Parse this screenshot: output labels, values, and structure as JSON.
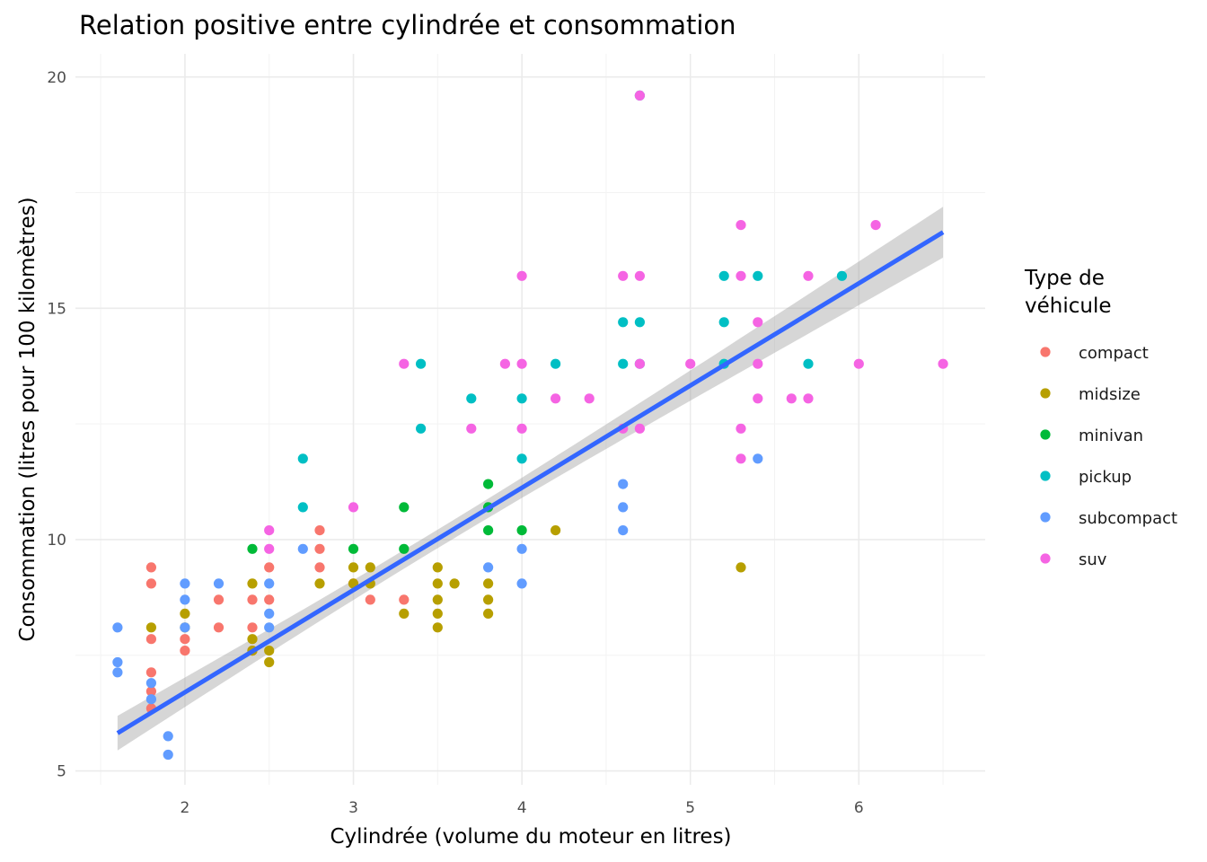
{
  "chart_data": {
    "type": "scatter",
    "title": "Relation positive entre cylindrée et consommation",
    "xlabel": "Cylindrée (volume du moteur en litres)",
    "ylabel": "Consommation (litres pour 100 kilomètres)",
    "xlim": [
      1.35,
      6.75
    ],
    "ylim": [
      4.7,
      20.5
    ],
    "x_ticks": [
      2,
      3,
      4,
      5,
      6
    ],
    "y_ticks": [
      5,
      10,
      15,
      20
    ],
    "grid": true,
    "legend": {
      "title": [
        "Type de",
        "véhicule"
      ],
      "placement": "right"
    },
    "trend": {
      "method": "linear",
      "intercept": 2.28,
      "slope": 2.21,
      "ci_halfwidth_at_ends": 0.55,
      "ci_halfwidth_at_mean": 0.2,
      "x_mean": 3.47,
      "x_range": [
        1.6,
        6.5
      ],
      "color": "#3366ff",
      "band_color": "#999999"
    },
    "series": [
      {
        "name": "compact",
        "color": "#f8766d",
        "points": [
          [
            1.8,
            9.4
          ],
          [
            1.8,
            9.05
          ],
          [
            1.8,
            7.85
          ],
          [
            1.8,
            7.13
          ],
          [
            1.8,
            6.72
          ],
          [
            1.8,
            6.35
          ],
          [
            2.0,
            7.85
          ],
          [
            2.0,
            7.6
          ],
          [
            2.2,
            8.7
          ],
          [
            2.2,
            8.1
          ],
          [
            2.4,
            8.7
          ],
          [
            2.4,
            8.1
          ],
          [
            2.4,
            7.6
          ],
          [
            2.5,
            9.4
          ],
          [
            2.5,
            8.7
          ],
          [
            2.8,
            10.2
          ],
          [
            2.8,
            9.8
          ],
          [
            2.8,
            9.4
          ],
          [
            3.0,
            9.05
          ],
          [
            3.1,
            8.7
          ],
          [
            3.3,
            8.7
          ]
        ]
      },
      {
        "name": "midsize",
        "color": "#b79f00",
        "points": [
          [
            1.8,
            8.1
          ],
          [
            2.0,
            8.4
          ],
          [
            2.0,
            8.1
          ],
          [
            2.4,
            9.05
          ],
          [
            2.4,
            7.85
          ],
          [
            2.4,
            7.6
          ],
          [
            2.5,
            7.6
          ],
          [
            2.5,
            7.35
          ],
          [
            2.8,
            9.05
          ],
          [
            3.0,
            9.4
          ],
          [
            3.0,
            9.05
          ],
          [
            3.1,
            9.4
          ],
          [
            3.1,
            9.05
          ],
          [
            3.3,
            8.4
          ],
          [
            3.5,
            9.4
          ],
          [
            3.5,
            9.05
          ],
          [
            3.5,
            8.7
          ],
          [
            3.5,
            8.4
          ],
          [
            3.5,
            8.1
          ],
          [
            3.6,
            9.05
          ],
          [
            3.8,
            9.05
          ],
          [
            3.8,
            8.7
          ],
          [
            3.8,
            8.4
          ],
          [
            4.2,
            10.2
          ],
          [
            5.3,
            9.4
          ]
        ]
      },
      {
        "name": "minivan",
        "color": "#00ba38",
        "points": [
          [
            2.4,
            9.8
          ],
          [
            3.0,
            9.8
          ],
          [
            3.3,
            10.7
          ],
          [
            3.3,
            9.8
          ],
          [
            3.8,
            11.2
          ],
          [
            3.8,
            10.7
          ],
          [
            3.8,
            10.2
          ],
          [
            4.0,
            10.2
          ]
        ]
      },
      {
        "name": "pickup",
        "color": "#00bfc4",
        "points": [
          [
            2.7,
            11.75
          ],
          [
            2.7,
            10.7
          ],
          [
            3.4,
            13.8
          ],
          [
            3.4,
            12.4
          ],
          [
            3.7,
            13.05
          ],
          [
            4.0,
            13.05
          ],
          [
            4.0,
            11.75
          ],
          [
            4.2,
            13.8
          ],
          [
            4.6,
            14.7
          ],
          [
            4.6,
            13.8
          ],
          [
            4.7,
            19.6
          ],
          [
            4.7,
            14.7
          ],
          [
            4.7,
            13.8
          ],
          [
            5.2,
            15.7
          ],
          [
            5.2,
            14.7
          ],
          [
            5.2,
            13.8
          ],
          [
            5.4,
            15.7
          ],
          [
            5.7,
            13.8
          ],
          [
            5.9,
            15.7
          ]
        ]
      },
      {
        "name": "subcompact",
        "color": "#619cff",
        "points": [
          [
            1.6,
            8.1
          ],
          [
            1.6,
            7.35
          ],
          [
            1.6,
            7.13
          ],
          [
            1.8,
            6.9
          ],
          [
            1.8,
            6.55
          ],
          [
            1.9,
            5.75
          ],
          [
            1.9,
            5.35
          ],
          [
            2.0,
            9.05
          ],
          [
            2.0,
            8.7
          ],
          [
            2.0,
            8.1
          ],
          [
            2.2,
            9.05
          ],
          [
            2.5,
            9.05
          ],
          [
            2.5,
            8.4
          ],
          [
            2.5,
            8.1
          ],
          [
            2.7,
            9.8
          ],
          [
            3.8,
            9.4
          ],
          [
            4.0,
            9.8
          ],
          [
            4.0,
            9.05
          ],
          [
            4.6,
            11.2
          ],
          [
            4.6,
            10.7
          ],
          [
            4.6,
            10.2
          ],
          [
            5.4,
            11.75
          ]
        ]
      },
      {
        "name": "suv",
        "color": "#f564e3",
        "points": [
          [
            2.5,
            10.2
          ],
          [
            2.5,
            9.8
          ],
          [
            3.0,
            10.7
          ],
          [
            3.3,
            13.8
          ],
          [
            3.7,
            12.4
          ],
          [
            3.9,
            13.8
          ],
          [
            4.0,
            15.7
          ],
          [
            4.0,
            13.8
          ],
          [
            4.0,
            12.4
          ],
          [
            4.2,
            13.05
          ],
          [
            4.4,
            13.05
          ],
          [
            4.6,
            15.7
          ],
          [
            4.6,
            12.4
          ],
          [
            4.7,
            19.6
          ],
          [
            4.7,
            15.7
          ],
          [
            4.7,
            13.8
          ],
          [
            4.7,
            12.4
          ],
          [
            5.0,
            13.8
          ],
          [
            5.3,
            16.8
          ],
          [
            5.3,
            15.7
          ],
          [
            5.3,
            12.4
          ],
          [
            5.3,
            11.75
          ],
          [
            5.4,
            14.7
          ],
          [
            5.4,
            13.8
          ],
          [
            5.4,
            13.05
          ],
          [
            5.6,
            13.05
          ],
          [
            5.7,
            15.7
          ],
          [
            5.7,
            13.05
          ],
          [
            6.0,
            13.8
          ],
          [
            6.1,
            16.8
          ],
          [
            6.5,
            13.8
          ]
        ]
      }
    ]
  }
}
